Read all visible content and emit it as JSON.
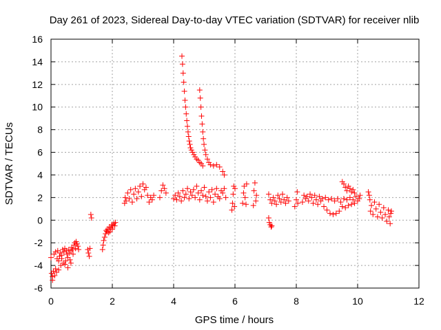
{
  "chart_data": {
    "type": "scatter",
    "title": "Day 261 of 2023, Sidereal Day-to-day VTEC variation (SDTVAR) for receiver nlib",
    "xlabel": "GPS time / hours",
    "ylabel": "SDTVAR / TECUs",
    "xlim": [
      0,
      12
    ],
    "ylim": [
      -6,
      16
    ],
    "xticks": [
      0,
      2,
      4,
      6,
      8,
      10,
      12
    ],
    "yticks": [
      -6,
      -4,
      -2,
      0,
      2,
      4,
      6,
      8,
      10,
      12,
      14,
      16
    ],
    "grid": true,
    "marker": "plus",
    "color": "#ff0000",
    "series": [
      {
        "name": "SDTVAR",
        "points": [
          [
            0.0,
            -3.3
          ],
          [
            0.02,
            -4.7
          ],
          [
            0.05,
            -5.3
          ],
          [
            0.08,
            -4.5
          ],
          [
            0.1,
            -3.0
          ],
          [
            0.12,
            -4.9
          ],
          [
            0.15,
            -2.8
          ],
          [
            0.18,
            -4.6
          ],
          [
            0.2,
            -3.4
          ],
          [
            0.22,
            -2.7
          ],
          [
            0.25,
            -4.4
          ],
          [
            0.28,
            -3.2
          ],
          [
            0.3,
            -2.9
          ],
          [
            0.32,
            -4.0
          ],
          [
            0.35,
            -3.1
          ],
          [
            0.38,
            -2.6
          ],
          [
            0.4,
            -3.8
          ],
          [
            0.42,
            -2.8
          ],
          [
            0.45,
            -2.5
          ],
          [
            0.48,
            -3.6
          ],
          [
            0.5,
            -2.7
          ],
          [
            0.52,
            -3.0
          ],
          [
            0.55,
            -4.2
          ],
          [
            0.58,
            -2.6
          ],
          [
            0.6,
            -2.9
          ],
          [
            0.62,
            -3.5
          ],
          [
            0.65,
            -2.7
          ],
          [
            0.68,
            -2.4
          ],
          [
            0.7,
            -2.6
          ],
          [
            0.72,
            -3.0
          ],
          [
            0.75,
            -2.2
          ],
          [
            0.78,
            -2.0
          ],
          [
            0.8,
            -2.5
          ],
          [
            0.82,
            -1.9
          ],
          [
            0.85,
            -2.1
          ],
          [
            0.88,
            -2.3
          ],
          [
            0.9,
            -2.6
          ],
          [
            0.05,
            -5.0
          ],
          [
            0.15,
            -4.3
          ],
          [
            0.25,
            -3.6
          ],
          [
            0.35,
            -3.4
          ],
          [
            0.45,
            -3.9
          ],
          [
            0.55,
            -3.3
          ],
          [
            0.65,
            -3.8
          ],
          [
            1.2,
            -2.6
          ],
          [
            1.22,
            -2.9
          ],
          [
            1.25,
            -3.2
          ],
          [
            1.27,
            -2.5
          ],
          [
            1.3,
            0.5
          ],
          [
            1.32,
            0.2
          ],
          [
            1.68,
            -2.6
          ],
          [
            1.7,
            -2.2
          ],
          [
            1.72,
            -1.8
          ],
          [
            1.75,
            -1.5
          ],
          [
            1.78,
            -1.2
          ],
          [
            1.8,
            -0.9
          ],
          [
            1.82,
            -1.0
          ],
          [
            1.85,
            -0.8
          ],
          [
            1.88,
            -1.1
          ],
          [
            1.9,
            -0.6
          ],
          [
            1.92,
            -1.0
          ],
          [
            1.95,
            -0.7
          ],
          [
            1.98,
            -0.4
          ],
          [
            2.0,
            -0.8
          ],
          [
            2.02,
            -0.5
          ],
          [
            2.05,
            -0.3
          ],
          [
            2.08,
            -0.5
          ],
          [
            2.1,
            -0.2
          ],
          [
            2.4,
            1.5
          ],
          [
            2.42,
            2.0
          ],
          [
            2.45,
            1.7
          ],
          [
            2.5,
            2.4
          ],
          [
            2.55,
            1.9
          ],
          [
            2.6,
            2.7
          ],
          [
            2.65,
            1.6
          ],
          [
            2.7,
            2.3
          ],
          [
            2.75,
            2.8
          ],
          [
            2.8,
            1.9
          ],
          [
            2.85,
            2.5
          ],
          [
            2.9,
            3.0
          ],
          [
            2.95,
            2.1
          ],
          [
            3.0,
            3.2
          ],
          [
            3.05,
            2.7
          ],
          [
            3.1,
            2.9
          ],
          [
            3.15,
            2.2
          ],
          [
            3.2,
            1.6
          ],
          [
            3.25,
            2.0
          ],
          [
            3.3,
            1.8
          ],
          [
            3.35,
            2.2
          ],
          [
            3.55,
            2.0
          ],
          [
            3.6,
            2.6
          ],
          [
            3.65,
            3.1
          ],
          [
            3.7,
            2.8
          ],
          [
            3.75,
            2.4
          ],
          [
            4.0,
            1.9
          ],
          [
            4.05,
            2.2
          ],
          [
            4.1,
            1.8
          ],
          [
            4.15,
            2.4
          ],
          [
            4.2,
            2.1
          ],
          [
            4.25,
            1.7
          ],
          [
            4.3,
            2.6
          ],
          [
            4.35,
            2.0
          ],
          [
            4.4,
            2.3
          ],
          [
            4.45,
            2.8
          ],
          [
            4.5,
            1.9
          ],
          [
            4.55,
            2.5
          ],
          [
            4.6,
            2.2
          ],
          [
            4.65,
            2.7
          ],
          [
            4.7,
            2.0
          ],
          [
            4.75,
            3.0
          ],
          [
            4.8,
            2.4
          ],
          [
            4.85,
            1.8
          ],
          [
            4.9,
            2.6
          ],
          [
            4.95,
            2.2
          ],
          [
            5.0,
            2.9
          ],
          [
            5.05,
            2.1
          ],
          [
            5.1,
            1.7
          ],
          [
            5.15,
            2.5
          ],
          [
            5.2,
            2.0
          ],
          [
            5.25,
            2.7
          ],
          [
            5.3,
            1.6
          ],
          [
            5.35,
            2.3
          ],
          [
            5.4,
            2.8
          ],
          [
            5.45,
            2.1
          ],
          [
            5.5,
            1.9
          ],
          [
            5.55,
            2.6
          ],
          [
            5.6,
            2.4
          ],
          [
            5.65,
            2.8
          ],
          [
            5.7,
            2.0
          ],
          [
            4.27,
            14.5
          ],
          [
            4.29,
            13.8
          ],
          [
            4.31,
            13.0
          ],
          [
            4.33,
            12.2
          ],
          [
            4.35,
            11.4
          ],
          [
            4.37,
            10.6
          ],
          [
            4.39,
            10.0
          ],
          [
            4.41,
            9.4
          ],
          [
            4.43,
            8.8
          ],
          [
            4.45,
            8.3
          ],
          [
            4.47,
            7.8
          ],
          [
            4.49,
            7.4
          ],
          [
            4.51,
            7.0
          ],
          [
            4.53,
            6.7
          ],
          [
            4.55,
            6.4
          ],
          [
            4.58,
            6.2
          ],
          [
            4.62,
            6.0
          ],
          [
            4.66,
            5.8
          ],
          [
            4.7,
            5.6
          ],
          [
            4.75,
            5.4
          ],
          [
            4.8,
            5.3
          ],
          [
            4.85,
            5.1
          ],
          [
            4.9,
            5.0
          ],
          [
            4.95,
            4.8
          ],
          [
            4.85,
            11.5
          ],
          [
            4.87,
            10.8
          ],
          [
            4.89,
            10.0
          ],
          [
            4.91,
            9.2
          ],
          [
            4.93,
            8.5
          ],
          [
            4.95,
            7.8
          ],
          [
            4.97,
            7.2
          ],
          [
            4.99,
            6.7
          ],
          [
            5.02,
            6.2
          ],
          [
            5.05,
            5.8
          ],
          [
            5.1,
            5.4
          ],
          [
            5.15,
            5.1
          ],
          [
            5.2,
            4.9
          ],
          [
            5.3,
            4.8
          ],
          [
            5.4,
            4.9
          ],
          [
            5.5,
            4.7
          ],
          [
            5.6,
            4.3
          ],
          [
            5.65,
            4.0
          ],
          [
            5.9,
            0.9
          ],
          [
            5.92,
            1.5
          ],
          [
            5.94,
            2.3
          ],
          [
            5.96,
            3.0
          ],
          [
            5.98,
            1.2
          ],
          [
            6.0,
            2.8
          ],
          [
            6.25,
            1.5
          ],
          [
            6.28,
            2.4
          ],
          [
            6.3,
            3.0
          ],
          [
            6.33,
            2.0
          ],
          [
            6.36,
            1.4
          ],
          [
            6.38,
            3.2
          ],
          [
            6.6,
            1.3
          ],
          [
            6.62,
            2.6
          ],
          [
            6.65,
            3.3
          ],
          [
            6.68,
            1.7
          ],
          [
            6.7,
            2.2
          ],
          [
            7.1,
            0.2
          ],
          [
            7.12,
            -0.2
          ],
          [
            7.15,
            -0.4
          ],
          [
            7.18,
            -0.6
          ],
          [
            7.2,
            -0.5
          ],
          [
            7.1,
            2.3
          ],
          [
            7.15,
            1.8
          ],
          [
            7.2,
            1.5
          ],
          [
            7.25,
            2.0
          ],
          [
            7.3,
            1.7
          ],
          [
            7.35,
            1.4
          ],
          [
            7.4,
            2.2
          ],
          [
            7.45,
            1.9
          ],
          [
            7.5,
            1.6
          ],
          [
            7.55,
            2.3
          ],
          [
            7.6,
            1.8
          ],
          [
            7.65,
            1.5
          ],
          [
            7.7,
            2.0
          ],
          [
            7.75,
            1.7
          ],
          [
            7.95,
            1.2
          ],
          [
            8.0,
            1.8
          ],
          [
            8.03,
            2.5
          ],
          [
            8.05,
            1.5
          ],
          [
            8.2,
            1.6
          ],
          [
            8.25,
            2.2
          ],
          [
            8.3,
            1.9
          ],
          [
            8.35,
            2.1
          ],
          [
            8.4,
            1.7
          ],
          [
            8.45,
            2.3
          ],
          [
            8.5,
            2.0
          ],
          [
            8.55,
            1.5
          ],
          [
            8.6,
            2.2
          ],
          [
            8.65,
            1.8
          ],
          [
            8.7,
            1.4
          ],
          [
            8.75,
            2.1
          ],
          [
            8.8,
            1.7
          ],
          [
            8.85,
            1.9
          ],
          [
            8.9,
            1.2
          ],
          [
            8.95,
            2.0
          ],
          [
            9.0,
            0.9
          ],
          [
            9.05,
            1.8
          ],
          [
            9.1,
            0.6
          ],
          [
            9.15,
            1.9
          ],
          [
            9.2,
            0.5
          ],
          [
            9.25,
            1.7
          ],
          [
            9.3,
            0.6
          ],
          [
            9.35,
            1.9
          ],
          [
            9.4,
            0.8
          ],
          [
            9.45,
            1.6
          ],
          [
            9.5,
            1.2
          ],
          [
            9.55,
            1.9
          ],
          [
            9.6,
            1.1
          ],
          [
            9.65,
            1.8
          ],
          [
            9.7,
            1.3
          ],
          [
            9.75,
            2.0
          ],
          [
            9.8,
            1.4
          ],
          [
            9.85,
            1.8
          ],
          [
            9.9,
            1.5
          ],
          [
            9.95,
            2.1
          ],
          [
            10.0,
            1.7
          ],
          [
            10.05,
            1.9
          ],
          [
            10.08,
            2.2
          ],
          [
            9.5,
            3.4
          ],
          [
            9.55,
            3.2
          ],
          [
            9.6,
            2.9
          ],
          [
            9.65,
            2.6
          ],
          [
            9.7,
            3.0
          ],
          [
            9.75,
            2.8
          ],
          [
            9.8,
            2.5
          ],
          [
            9.85,
            2.7
          ],
          [
            9.9,
            2.4
          ],
          [
            10.35,
            2.5
          ],
          [
            10.38,
            2.2
          ],
          [
            10.4,
            1.8
          ],
          [
            10.42,
            0.8
          ],
          [
            10.45,
            1.3
          ],
          [
            10.5,
            0.5
          ],
          [
            10.55,
            1.6
          ],
          [
            10.6,
            1.0
          ],
          [
            10.65,
            0.3
          ],
          [
            10.7,
            1.4
          ],
          [
            10.75,
            0.7
          ],
          [
            10.8,
            0.2
          ],
          [
            10.85,
            1.1
          ],
          [
            10.9,
            0.5
          ],
          [
            10.95,
            -0.1
          ],
          [
            11.0,
            0.9
          ],
          [
            11.03,
            0.3
          ],
          [
            11.06,
            -0.3
          ],
          [
            11.08,
            0.6
          ],
          [
            11.1,
            0.8
          ]
        ]
      }
    ]
  }
}
